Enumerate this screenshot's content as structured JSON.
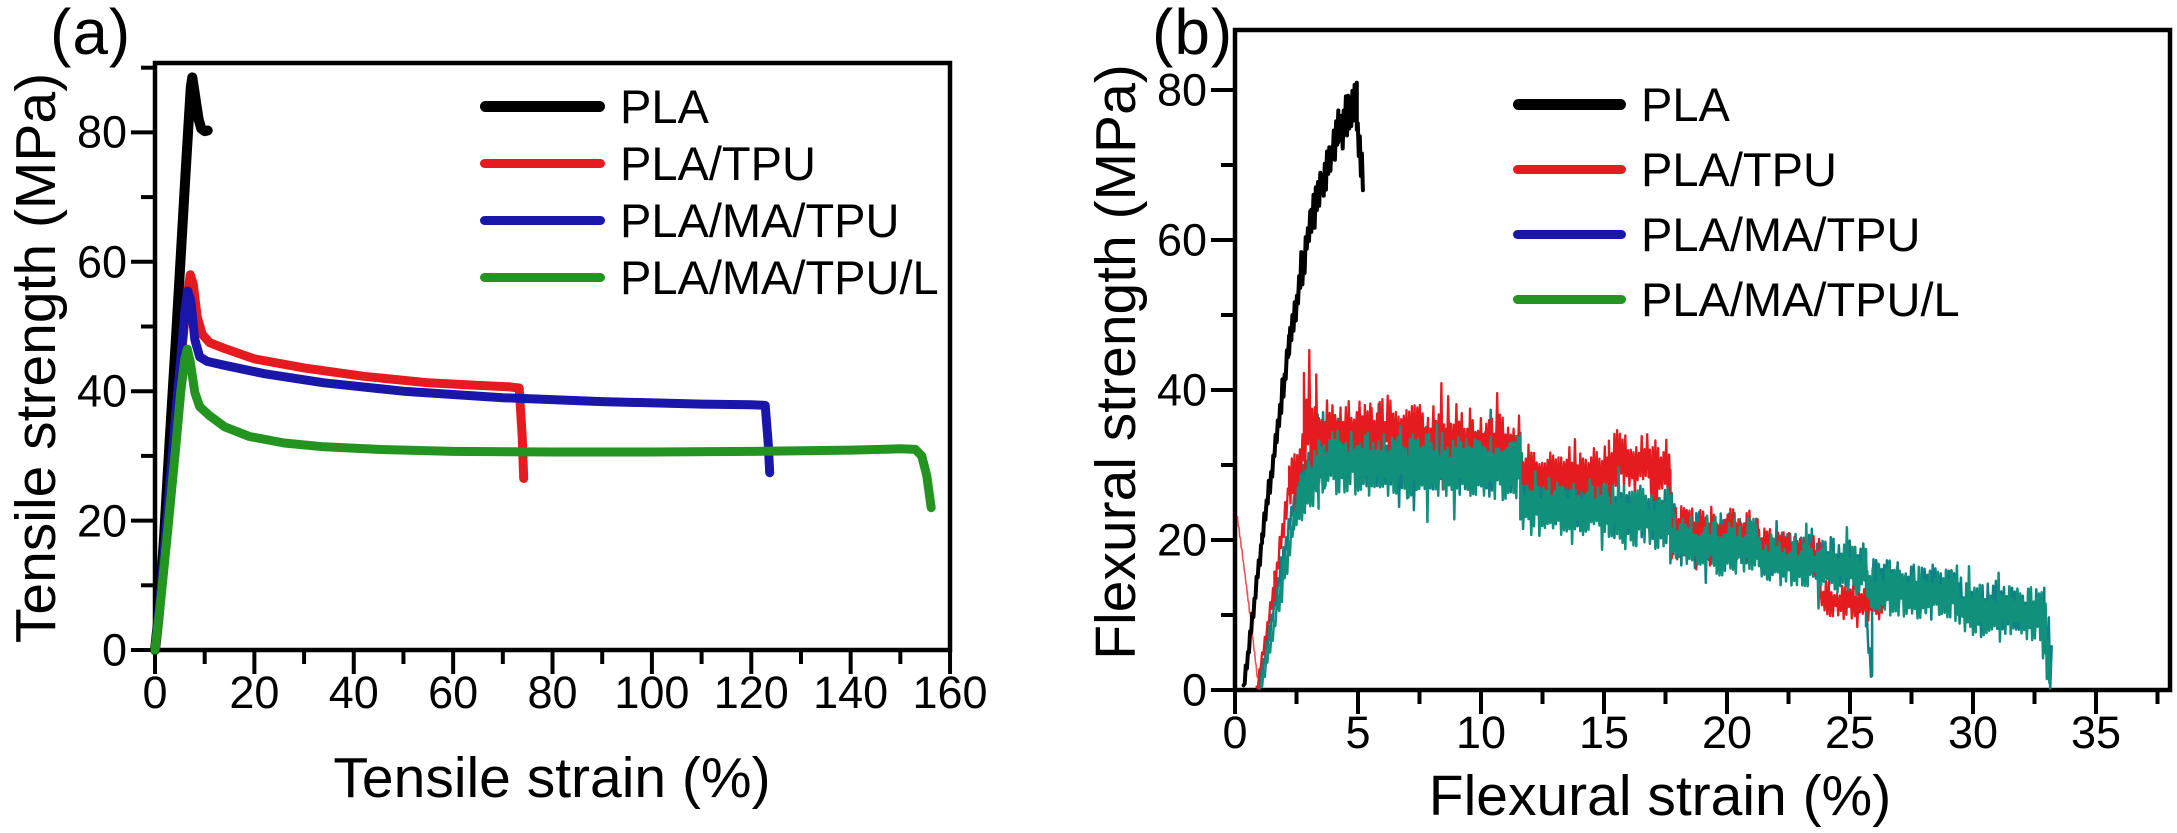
{
  "figure": {
    "panel_a_label": "(a)",
    "panel_b_label": "(b)",
    "background_color": "#ffffff",
    "frame_color": "#000000"
  },
  "legend": {
    "entries": [
      {
        "label": "PLA",
        "color": "#000000"
      },
      {
        "label": "PLA/TPU",
        "color": "#e51b20"
      },
      {
        "label": "PLA/MA/TPU",
        "color": "#1b16aa"
      },
      {
        "label": "PLA/MA/TPU/L",
        "color": "#22941f"
      }
    ]
  },
  "chart_data": [
    {
      "panel": "a",
      "type": "line",
      "title": "",
      "xlabel": "Tensile strain (%)",
      "ylabel": "Tensile strength (MPa)",
      "xlim": [
        0,
        160
      ],
      "ylim": [
        0,
        91
      ],
      "x_ticks": [
        0,
        20,
        40,
        60,
        80,
        100,
        120,
        140,
        160
      ],
      "y_ticks": [
        0,
        20,
        40,
        60,
        80
      ],
      "x_minor_step": 10,
      "y_minor_step": 10,
      "grid": false,
      "legend_position": "upper right inside",
      "series": [
        {
          "name": "PLA",
          "color": "#000000",
          "peak_mpa": 88.5,
          "break_strain_pct": 10.5,
          "points": [
            [
              0,
              0
            ],
            [
              0.7,
              5
            ],
            [
              1.8,
              17
            ],
            [
              3,
              33
            ],
            [
              4.2,
              48
            ],
            [
              5.2,
              61
            ],
            [
              6.1,
              73
            ],
            [
              6.8,
              82
            ],
            [
              7.2,
              87
            ],
            [
              7.5,
              88.5
            ],
            [
              7.8,
              87
            ],
            [
              8.3,
              84.5
            ],
            [
              8.8,
              82
            ],
            [
              9.3,
              80.6
            ],
            [
              10,
              80.2
            ],
            [
              10.6,
              80.3
            ]
          ]
        },
        {
          "name": "PLA/TPU",
          "color": "#e51b20",
          "peak_mpa": 58,
          "break_strain_pct": 74,
          "points": [
            [
              0,
              0
            ],
            [
              1,
              7
            ],
            [
              2.5,
              20
            ],
            [
              4,
              34
            ],
            [
              5.5,
              47
            ],
            [
              6.5,
              55
            ],
            [
              7.1,
              58
            ],
            [
              7.7,
              56.5
            ],
            [
              8.5,
              51.5
            ],
            [
              9.5,
              48.8
            ],
            [
              11,
              47.5
            ],
            [
              14,
              46.6
            ],
            [
              20,
              45
            ],
            [
              30,
              43.6
            ],
            [
              42,
              42.3
            ],
            [
              55,
              41.3
            ],
            [
              65,
              40.9
            ],
            [
              71,
              40.7
            ],
            [
              73.3,
              40.5
            ],
            [
              73.9,
              33
            ],
            [
              74.2,
              26.5
            ]
          ]
        },
        {
          "name": "PLA/MA/TPU",
          "color": "#1b16aa",
          "peak_mpa": 55.5,
          "break_strain_pct": 123.5,
          "points": [
            [
              0,
              0
            ],
            [
              1,
              7.5
            ],
            [
              2.5,
              21
            ],
            [
              4,
              35
            ],
            [
              5.3,
              46
            ],
            [
              6.1,
              53
            ],
            [
              6.6,
              55.5
            ],
            [
              7.2,
              54
            ],
            [
              8,
              48
            ],
            [
              9,
              45.3
            ],
            [
              10.5,
              44.6
            ],
            [
              14,
              44
            ],
            [
              22,
              42.7
            ],
            [
              34,
              41.3
            ],
            [
              50,
              40
            ],
            [
              70,
              39
            ],
            [
              90,
              38.4
            ],
            [
              110,
              38
            ],
            [
              120,
              37.9
            ],
            [
              122.8,
              37.8
            ],
            [
              123.4,
              32
            ],
            [
              123.7,
              27.4
            ]
          ]
        },
        {
          "name": "PLA/MA/TPU/L",
          "color": "#22941f",
          "peak_mpa": 46.5,
          "break_strain_pct": 156,
          "points": [
            [
              0,
              0
            ],
            [
              1,
              6.5
            ],
            [
              2.5,
              18
            ],
            [
              4,
              30
            ],
            [
              5.2,
              40
            ],
            [
              6,
              45
            ],
            [
              6.5,
              46.5
            ],
            [
              7.1,
              44.5
            ],
            [
              8,
              39.8
            ],
            [
              9,
              37.6
            ],
            [
              11,
              36.2
            ],
            [
              14,
              34.5
            ],
            [
              19,
              33
            ],
            [
              26,
              32
            ],
            [
              34,
              31.4
            ],
            [
              45,
              31
            ],
            [
              60,
              30.7
            ],
            [
              80,
              30.6
            ],
            [
              100,
              30.6
            ],
            [
              120,
              30.7
            ],
            [
              140,
              30.9
            ],
            [
              150,
              31.1
            ],
            [
              153,
              31
            ],
            [
              154.3,
              30
            ],
            [
              155.3,
              27
            ],
            [
              156.2,
              22
            ]
          ]
        }
      ]
    },
    {
      "panel": "b",
      "type": "line",
      "style": "noisy",
      "title": "",
      "xlabel": "Flexural strain (%)",
      "ylabel": "Flexural strength (MPa)",
      "xlim": [
        0,
        38
      ],
      "ylim": [
        0,
        88
      ],
      "x_ticks": [
        0,
        5,
        10,
        15,
        20,
        25,
        30,
        35
      ],
      "y_ticks": [
        0,
        20,
        40,
        60,
        80
      ],
      "x_minor_step": 2.5,
      "y_minor_step": 10,
      "grid": false,
      "legend_position": "upper right inside",
      "render_note": "PLA/MA/TPU and PLA/MA/TPU/L traces overlap and appear as a dark teal noisy band; segments are [x_start, x_end, mean_start, mean_end, noise_amplitude] in (%, MPa)",
      "series": [
        {
          "name": "PLA",
          "color": "#000000",
          "peak_mpa": 79,
          "break_strain_pct": 5.2,
          "segments": [
            [
              0.35,
              1.1,
              0,
              20,
              1
            ],
            [
              1.1,
              2.2,
              20,
              46,
              1.6
            ],
            [
              2.2,
              3.1,
              46,
              63,
              2.2
            ],
            [
              3.1,
              4.2,
              63,
              74.5,
              3
            ],
            [
              4.2,
              4.95,
              74.5,
              78.5,
              3.3
            ],
            [
              4.95,
              5.2,
              76,
              68,
              2.5
            ]
          ]
        },
        {
          "name": "PLA/TPU",
          "color": "#e51b20",
          "peak_mpa": 45,
          "break_strain_pct": 26.3,
          "toe_segments": [
            [
              0.1,
              0.5,
              23,
              13,
              0.4
            ],
            [
              0.5,
              0.92,
              13,
              1.5,
              0.4
            ]
          ],
          "segments": [
            [
              0.88,
              1.6,
              0,
              14,
              1.2
            ],
            [
              1.6,
              2.2,
              14,
              27,
              2
            ],
            [
              2.2,
              2.8,
              27,
              32,
              3.5
            ],
            [
              2.8,
              3.3,
              35,
              36,
              6.5
            ],
            [
              3.3,
              5.5,
              34.5,
              34.5,
              4.5
            ],
            [
              5.5,
              8.5,
              34.5,
              33.5,
              4.5
            ],
            [
              8.5,
              11.6,
              33.5,
              32.5,
              4.5
            ],
            [
              11.6,
              15.2,
              29,
              28.5,
              4
            ],
            [
              15.2,
              17.7,
              30.5,
              29.5,
              4.5
            ],
            [
              17.7,
              21.3,
              21.5,
              20.5,
              3.5
            ],
            [
              21.3,
              23.8,
              19,
              17.5,
              3
            ],
            [
              23.8,
              26.35,
              12,
              11.5,
              2.5
            ]
          ]
        },
        {
          "name": "PLA/MA/TPU",
          "color": "#1b16aa",
          "plot_color": "#0d8186",
          "break_strain_pct": 33.2,
          "segments": [
            [
              0.95,
              1.7,
              0,
              13,
              1.2
            ],
            [
              1.7,
              2.4,
              13,
              25,
              2
            ],
            [
              2.4,
              3.2,
              25,
              30.5,
              4
            ],
            [
              3.2,
              3.8,
              31.5,
              32,
              6
            ],
            [
              3.8,
              7,
              32,
              31,
              4.5
            ],
            [
              7,
              11.6,
              31,
              30,
              4.5
            ],
            [
              11.6,
              15.2,
              25.5,
              25,
              4
            ],
            [
              15.2,
              17.7,
              24,
              23.5,
              4
            ],
            [
              17.7,
              21.3,
              20.5,
              19.5,
              4
            ],
            [
              21.3,
              25.65,
              18,
              16.5,
              3.5
            ],
            [
              25.65,
              25.9,
              9,
              1.5,
              1.5
            ],
            [
              25.9,
              29.4,
              14,
              13,
              3.5
            ],
            [
              29.4,
              32.9,
              11.5,
              10.5,
              3.5
            ],
            [
              32.9,
              33.2,
              8,
              1.5,
              6
            ]
          ]
        },
        {
          "name": "PLA/MA/TPU/L",
          "color": "#22941f",
          "plot_color": "#11907b",
          "break_strain_pct": 33.15,
          "segments": [
            [
              1.05,
              1.8,
              0,
              12,
              1.2
            ],
            [
              1.8,
              2.5,
              12,
              24,
              2
            ],
            [
              2.5,
              3.4,
              24,
              29.5,
              4
            ],
            [
              3.4,
              7,
              30.5,
              30,
              4.5
            ],
            [
              7,
              11.6,
              30,
              29.5,
              4.5
            ],
            [
              11.6,
              15.2,
              24.5,
              24,
              4
            ],
            [
              15.2,
              17.7,
              23.5,
              22.5,
              4
            ],
            [
              17.7,
              21.3,
              19.5,
              19,
              4
            ],
            [
              21.3,
              25.7,
              17.5,
              16,
              3.5
            ],
            [
              25.7,
              29.4,
              13.5,
              12.5,
              3.5
            ],
            [
              29.4,
              32.9,
              11,
              10,
              3.5
            ],
            [
              32.9,
              33.15,
              9,
              2,
              5
            ]
          ]
        }
      ]
    }
  ]
}
